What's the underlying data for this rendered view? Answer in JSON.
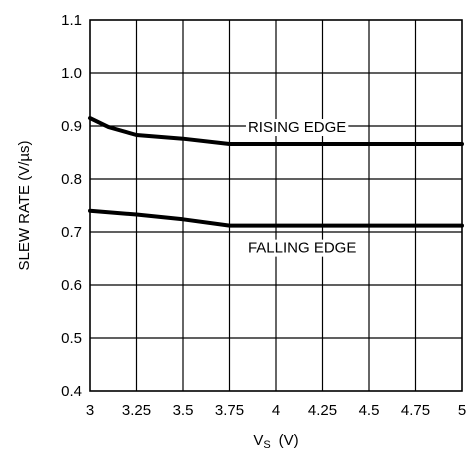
{
  "chart_data": {
    "type": "line",
    "xlabel_main": "V",
    "xlabel_sub": "S",
    "xlabel_unit": "(V)",
    "ylabel": "SLEW RATE (V/µs)",
    "xlim": [
      3,
      5
    ],
    "ylim": [
      0.4,
      1.1
    ],
    "x_ticks": [
      "3",
      "3.25",
      "3.5",
      "3.75",
      "4",
      "4.25",
      "4.5",
      "4.75",
      "5"
    ],
    "y_ticks": [
      "1.1",
      "1.0",
      "0.9",
      "0.8",
      "0.7",
      "0.6",
      "0.5",
      "0.4"
    ],
    "grid": true,
    "series": [
      {
        "name": "RISING EDGE",
        "x": [
          3.0,
          3.1,
          3.25,
          3.5,
          3.75,
          4.0,
          4.5,
          5.0
        ],
        "y": [
          0.915,
          0.898,
          0.883,
          0.876,
          0.866,
          0.866,
          0.866,
          0.866
        ]
      },
      {
        "name": "FALLING EDGE",
        "x": [
          3.0,
          3.25,
          3.5,
          3.75,
          4.0,
          4.5,
          5.0
        ],
        "y": [
          0.74,
          0.733,
          0.724,
          0.712,
          0.712,
          0.712,
          0.712
        ]
      }
    ]
  }
}
